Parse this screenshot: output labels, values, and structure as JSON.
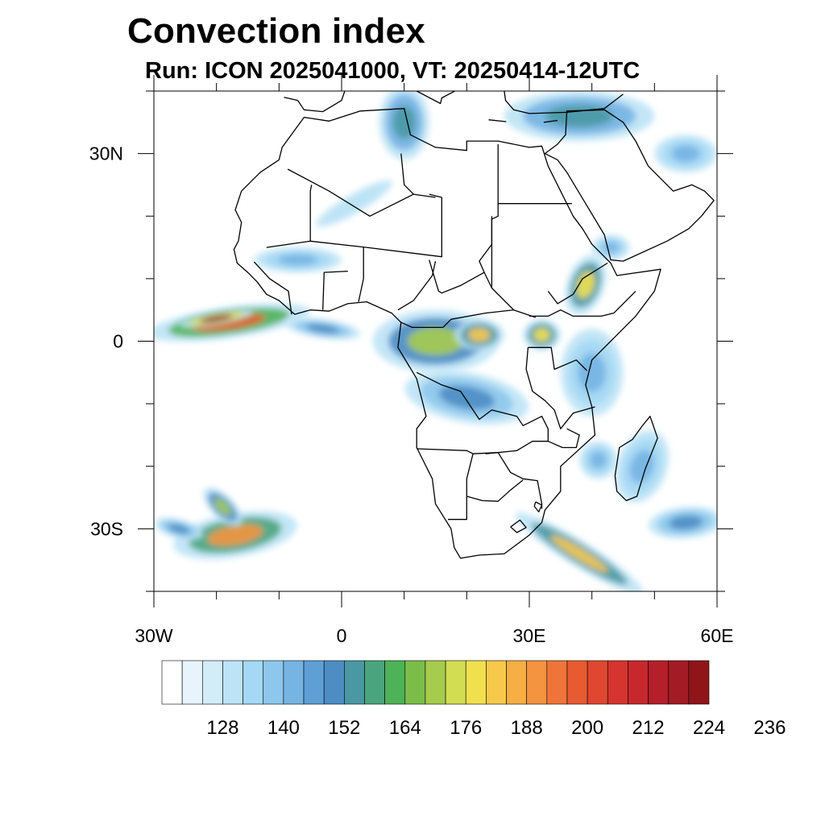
{
  "title": "Convection index",
  "subtitle": "Run: ICON 2025041000,  VT: 20250414-12UTC",
  "map": {
    "lon_range": [
      -30,
      60
    ],
    "lat_range": [
      -40,
      40
    ],
    "lat_ticks": [
      {
        "value": 30,
        "label": "30N"
      },
      {
        "value": 0,
        "label": "0"
      },
      {
        "value": -30,
        "label": "30S"
      }
    ],
    "lon_ticks": [
      {
        "value": -30,
        "label": "30W"
      },
      {
        "value": 0,
        "label": "0"
      },
      {
        "value": 30,
        "label": "30E"
      },
      {
        "value": 60,
        "label": "60E"
      }
    ]
  },
  "colorbar": {
    "colors": [
      "#ffffff",
      "#e8f4fb",
      "#d2ecf8",
      "#bde3f6",
      "#a4d8f4",
      "#8dc8ec",
      "#76b4e3",
      "#5e9fd6",
      "#4d8dc4",
      "#4a98a4",
      "#4aa57e",
      "#4eb257",
      "#7cbd4a",
      "#a6cc4e",
      "#d2dd52",
      "#f1e04e",
      "#f7c94a",
      "#f6ae45",
      "#f49340",
      "#ef743a",
      "#e85a30",
      "#e04730",
      "#d6342e",
      "#c7282d",
      "#b41f2a",
      "#a31b24",
      "#8f1519"
    ],
    "tick_labels": [
      "128",
      "140",
      "152",
      "164",
      "176",
      "188",
      "200",
      "212",
      "224",
      "236"
    ]
  },
  "fields": [
    {
      "name": "equatorial-atlantic-band",
      "value": 196,
      "center": [
        -18,
        3
      ],
      "radii": [
        13,
        2.5
      ],
      "rotate": -8
    },
    {
      "name": "equatorial-atlantic-core",
      "value": 222,
      "center": [
        -20,
        3.6
      ],
      "radii": [
        6,
        1.1
      ],
      "rotate": -10
    },
    {
      "name": "equatorial-atlantic-tail",
      "value": 150,
      "center": [
        -3,
        2
      ],
      "radii": [
        6,
        1.5
      ],
      "rotate": 8
    },
    {
      "name": "congo-basin",
      "value": 168,
      "center": [
        15,
        0
      ],
      "radii": [
        10,
        5
      ],
      "rotate": 0
    },
    {
      "name": "congo-east",
      "value": 180,
      "center": [
        22,
        1
      ],
      "radii": [
        4,
        2.5
      ],
      "rotate": 0
    },
    {
      "name": "lake-victoria",
      "value": 176,
      "center": [
        32,
        1
      ],
      "radii": [
        3,
        2.5
      ],
      "rotate": 0
    },
    {
      "name": "ethiopian-highlands",
      "value": 176,
      "center": [
        39,
        9
      ],
      "radii": [
        3,
        5
      ],
      "rotate": 20
    },
    {
      "name": "central-africa-south",
      "value": 150,
      "center": [
        20,
        -9
      ],
      "radii": [
        10,
        4
      ],
      "rotate": 10
    },
    {
      "name": "east-africa-coast",
      "value": 140,
      "center": [
        40,
        -5
      ],
      "radii": [
        5,
        7
      ],
      "rotate": 0
    },
    {
      "name": "madagascar",
      "value": 140,
      "center": [
        48,
        -20
      ],
      "radii": [
        4,
        6
      ],
      "rotate": 20
    },
    {
      "name": "mozambique-channel",
      "value": 140,
      "center": [
        41,
        -19
      ],
      "radii": [
        3,
        3
      ],
      "rotate": 0
    },
    {
      "name": "north-africa-plume",
      "value": 152,
      "center": [
        10,
        35
      ],
      "radii": [
        4,
        6
      ],
      "rotate": 0
    },
    {
      "name": "mediterranean-east",
      "value": 152,
      "center": [
        38,
        36
      ],
      "radii": [
        12,
        4
      ],
      "rotate": 0
    },
    {
      "name": "southern-africa-front",
      "value": 182,
      "center": [
        38,
        -34
      ],
      "radii": [
        12,
        2
      ],
      "rotate": 32
    },
    {
      "name": "south-atlantic-storm",
      "value": 188,
      "center": [
        -17,
        -31
      ],
      "radii": [
        10,
        3.5
      ],
      "rotate": -10
    },
    {
      "name": "south-atlantic-arm",
      "value": 170,
      "center": [
        -19,
        -26.5
      ],
      "radii": [
        4,
        1.8
      ],
      "rotate": 45
    },
    {
      "name": "south-atlantic-west",
      "value": 150,
      "center": [
        -26,
        -30
      ],
      "radii": [
        4,
        1.5
      ],
      "rotate": 15
    },
    {
      "name": "south-indian-ocean",
      "value": 150,
      "center": [
        55,
        -29
      ],
      "radii": [
        6,
        2.5
      ],
      "rotate": -5
    },
    {
      "name": "arabia-southeast",
      "value": 140,
      "center": [
        55,
        30
      ],
      "radii": [
        5,
        3
      ],
      "rotate": 0
    },
    {
      "name": "west-africa-coast",
      "value": 140,
      "center": [
        -7,
        13
      ],
      "radii": [
        7,
        2
      ],
      "rotate": 0
    },
    {
      "name": "yemen",
      "value": 140,
      "center": [
        43,
        15
      ],
      "radii": [
        3,
        2
      ],
      "rotate": 0
    },
    {
      "name": "sahara-streak",
      "value": 128,
      "center": [
        2,
        22
      ],
      "radii": [
        7,
        1.5
      ],
      "rotate": -30
    }
  ],
  "borders": {
    "africa": [
      [
        -17,
        21
      ],
      [
        -16,
        24
      ],
      [
        -13,
        27
      ],
      [
        -10,
        29
      ],
      [
        -9.5,
        31
      ],
      [
        -6,
        35.8
      ],
      [
        -2,
        35.2
      ],
      [
        3,
        36.8
      ],
      [
        10,
        37.2
      ],
      [
        11,
        33
      ],
      [
        15,
        31
      ],
      [
        20,
        30.5
      ],
      [
        20,
        32
      ],
      [
        25,
        32
      ],
      [
        30,
        31
      ],
      [
        32,
        31.2
      ],
      [
        33,
        28
      ],
      [
        35,
        24
      ],
      [
        37,
        20
      ],
      [
        38.5,
        18
      ],
      [
        40,
        15.5
      ],
      [
        43,
        12.5
      ],
      [
        44,
        10.5
      ],
      [
        51,
        11.5
      ],
      [
        50,
        8
      ],
      [
        47,
        4
      ],
      [
        43,
        0
      ],
      [
        40,
        -3
      ],
      [
        39,
        -7
      ],
      [
        40,
        -10.5
      ],
      [
        40.5,
        -15
      ],
      [
        35,
        -20
      ],
      [
        35,
        -24
      ],
      [
        32.5,
        -27
      ],
      [
        32,
        -29
      ],
      [
        30,
        -31
      ],
      [
        26,
        -34
      ],
      [
        22,
        -34.2
      ],
      [
        19,
        -34.7
      ],
      [
        18,
        -33
      ],
      [
        17.5,
        -30
      ],
      [
        15,
        -26
      ],
      [
        14.5,
        -22
      ],
      [
        12,
        -17
      ],
      [
        12,
        -14
      ],
      [
        13.5,
        -12
      ],
      [
        12,
        -6
      ],
      [
        9,
        -1
      ],
      [
        9.5,
        3
      ],
      [
        8,
        4.5
      ],
      [
        4,
        6.3
      ],
      [
        1,
        6
      ],
      [
        -2,
        4.8
      ],
      [
        -5,
        5
      ],
      [
        -7.5,
        4.3
      ],
      [
        -10,
        6.5
      ],
      [
        -12,
        7.5
      ],
      [
        -13.5,
        9.5
      ],
      [
        -15,
        11
      ],
      [
        -16.7,
        12.5
      ],
      [
        -17.2,
        14.7
      ],
      [
        -16.5,
        16
      ],
      [
        -16,
        19
      ],
      [
        -17,
        21
      ]
    ],
    "arabia": [
      [
        32.5,
        30
      ],
      [
        34.5,
        29
      ],
      [
        36,
        27
      ],
      [
        39,
        22
      ],
      [
        42,
        17
      ],
      [
        43,
        13
      ],
      [
        45,
        12.8
      ],
      [
        52,
        16
      ],
      [
        55.5,
        18
      ],
      [
        57.5,
        20
      ],
      [
        59.5,
        22.5
      ],
      [
        58,
        24
      ],
      [
        56,
        25
      ],
      [
        53,
        24
      ],
      [
        51,
        26
      ],
      [
        49,
        28
      ],
      [
        48,
        30
      ],
      [
        47,
        32
      ],
      [
        45,
        35
      ],
      [
        42,
        37
      ],
      [
        36,
        36.8
      ],
      [
        35.8,
        33
      ],
      [
        34.5,
        31.5
      ],
      [
        32.5,
        30
      ]
    ],
    "madagascar": [
      [
        49.3,
        -12
      ],
      [
        50.5,
        -15.5
      ],
      [
        49.5,
        -18
      ],
      [
        48.5,
        -20.5
      ],
      [
        47.2,
        -24.8
      ],
      [
        45.5,
        -25.5
      ],
      [
        44,
        -24
      ],
      [
        43.7,
        -21.5
      ],
      [
        44.4,
        -17
      ],
      [
        46.5,
        -15.7
      ],
      [
        48,
        -13.6
      ],
      [
        49.3,
        -12
      ]
    ],
    "europe": [
      [
        -9.2,
        39
      ],
      [
        -7,
        38.5
      ],
      [
        -6,
        37
      ],
      [
        -3,
        36.7
      ],
      [
        0,
        38.5
      ],
      [
        0.5,
        40
      ]
    ],
    "italy": [
      [
        12,
        40
      ],
      [
        15.8,
        38
      ],
      [
        16,
        38.9
      ],
      [
        18.5,
        40.2
      ]
    ],
    "turkey": [
      [
        26,
        40
      ],
      [
        26.2,
        38.5
      ],
      [
        27.5,
        37
      ],
      [
        30,
        36.4
      ],
      [
        36,
        36.6
      ],
      [
        38,
        36.8
      ],
      [
        42,
        37.2
      ],
      [
        45,
        39.5
      ]
    ],
    "crete": [
      [
        23.5,
        35.4
      ],
      [
        26.3,
        35.1
      ]
    ],
    "cyprus": [
      [
        32.3,
        35
      ],
      [
        34.5,
        35.3
      ]
    ],
    "internal": [
      [
        [
          -8.6,
          27.5
        ],
        [
          -2,
          24
        ],
        [
          4.5,
          20
        ],
        [
          11.5,
          23.5
        ],
        [
          15,
          23
        ]
      ],
      [
        [
          -5,
          16
        ],
        [
          -5,
          24
        ],
        [
          -4.8,
          25
        ]
      ],
      [
        [
          -12,
          15
        ],
        [
          -5,
          16
        ],
        [
          4,
          15
        ],
        [
          16,
          13.5
        ],
        [
          16,
          23
        ],
        [
          14,
          23.5
        ]
      ],
      [
        [
          9.5,
          30
        ],
        [
          10,
          25
        ],
        [
          11.5,
          23.5
        ]
      ],
      [
        [
          25,
          31.5
        ],
        [
          25,
          20
        ],
        [
          24,
          19.5
        ],
        [
          24,
          15.5
        ],
        [
          22,
          12.8
        ],
        [
          22.8,
          11
        ],
        [
          24,
          8.5
        ],
        [
          27.5,
          5
        ],
        [
          31,
          3.8
        ]
      ],
      [
        [
          25,
          22
        ],
        [
          36.8,
          22
        ]
      ],
      [
        [
          24,
          20
        ],
        [
          24,
          8.5
        ]
      ],
      [
        [
          14,
          13
        ],
        [
          15.5,
          8
        ],
        [
          16,
          7.7
        ],
        [
          19,
          8.9
        ],
        [
          22.8,
          11
        ]
      ],
      [
        [
          9.5,
          3
        ],
        [
          11.3,
          2.2
        ],
        [
          16.2,
          2.2
        ]
      ],
      [
        [
          16.2,
          2.2
        ],
        [
          17.5,
          3.5
        ],
        [
          23,
          4.5
        ],
        [
          27.5,
          5
        ]
      ],
      [
        [
          9,
          5
        ],
        [
          11.5,
          6.5
        ],
        [
          14.5,
          10.5
        ],
        [
          15,
          12.8
        ]
      ],
      [
        [
          2.7,
          6.3
        ],
        [
          3.5,
          10
        ],
        [
          3.5,
          15
        ]
      ],
      [
        [
          -3,
          5
        ],
        [
          -2.8,
          11
        ],
        [
          1,
          11.2
        ]
      ],
      [
        [
          -8,
          4.3
        ],
        [
          -8.5,
          8
        ],
        [
          -11.5,
          10
        ],
        [
          -14,
          12.7
        ]
      ],
      [
        [
          30,
          4
        ],
        [
          33,
          4
        ],
        [
          35,
          5
        ],
        [
          37,
          4
        ],
        [
          40,
          4
        ],
        [
          41.5,
          4
        ],
        [
          43.5,
          4.5
        ],
        [
          47,
          8
        ]
      ],
      [
        [
          33,
          8
        ],
        [
          34.5,
          6
        ],
        [
          37,
          7.5
        ],
        [
          38.5,
          10
        ],
        [
          42.5,
          12.5
        ]
      ],
      [
        [
          29.8,
          -1
        ],
        [
          33.5,
          -1
        ],
        [
          34,
          -4.5
        ],
        [
          37.5,
          -3
        ],
        [
          39.2,
          -4.7
        ]
      ],
      [
        [
          29.8,
          -1
        ],
        [
          29.5,
          -4.5
        ],
        [
          30.5,
          -8
        ],
        [
          32.5,
          -9.5
        ],
        [
          34,
          -11
        ],
        [
          35,
          -14
        ],
        [
          37,
          -11.5
        ],
        [
          40.5,
          -10.5
        ]
      ],
      [
        [
          12,
          -5
        ],
        [
          16,
          -7
        ],
        [
          19,
          -8
        ],
        [
          22,
          -12.5
        ],
        [
          24,
          -11
        ],
        [
          28,
          -12
        ],
        [
          29,
          -13.5
        ],
        [
          32,
          -12
        ],
        [
          33,
          -14
        ],
        [
          33,
          -16
        ],
        [
          30.5,
          -16
        ],
        [
          28,
          -17.5
        ],
        [
          25,
          -17.8
        ],
        [
          23,
          -18
        ]
      ],
      [
        [
          12,
          -17.2
        ],
        [
          20,
          -17.5
        ],
        [
          21,
          -18
        ],
        [
          25,
          -17.8
        ]
      ],
      [
        [
          21,
          -18
        ],
        [
          20,
          -22
        ],
        [
          20,
          -26.8
        ],
        [
          20,
          -28.5
        ],
        [
          17,
          -28.5
        ]
      ],
      [
        [
          25,
          -17.8
        ],
        [
          27,
          -21
        ],
        [
          29,
          -22
        ],
        [
          31.3,
          -22.3
        ],
        [
          32,
          -26
        ],
        [
          32,
          -26.8
        ]
      ],
      [
        [
          20,
          -24.8
        ],
        [
          22.5,
          -25.5
        ],
        [
          25,
          -25.6
        ],
        [
          27,
          -23.8
        ],
        [
          29,
          -22.2
        ]
      ],
      [
        [
          27,
          -29.7
        ],
        [
          28.5,
          -28.6
        ],
        [
          29.5,
          -29.8
        ],
        [
          28,
          -30.6
        ],
        [
          27,
          -29.7
        ]
      ],
      [
        [
          31,
          -25.7
        ],
        [
          32,
          -26.2
        ],
        [
          31.5,
          -27.3
        ],
        [
          30.8,
          -26.4
        ],
        [
          31,
          -25.7
        ]
      ],
      [
        [
          36,
          -14
        ],
        [
          38,
          -15
        ],
        [
          37.5,
          -17
        ],
        [
          35.3,
          -17
        ],
        [
          33,
          -16
        ]
      ]
    ]
  }
}
